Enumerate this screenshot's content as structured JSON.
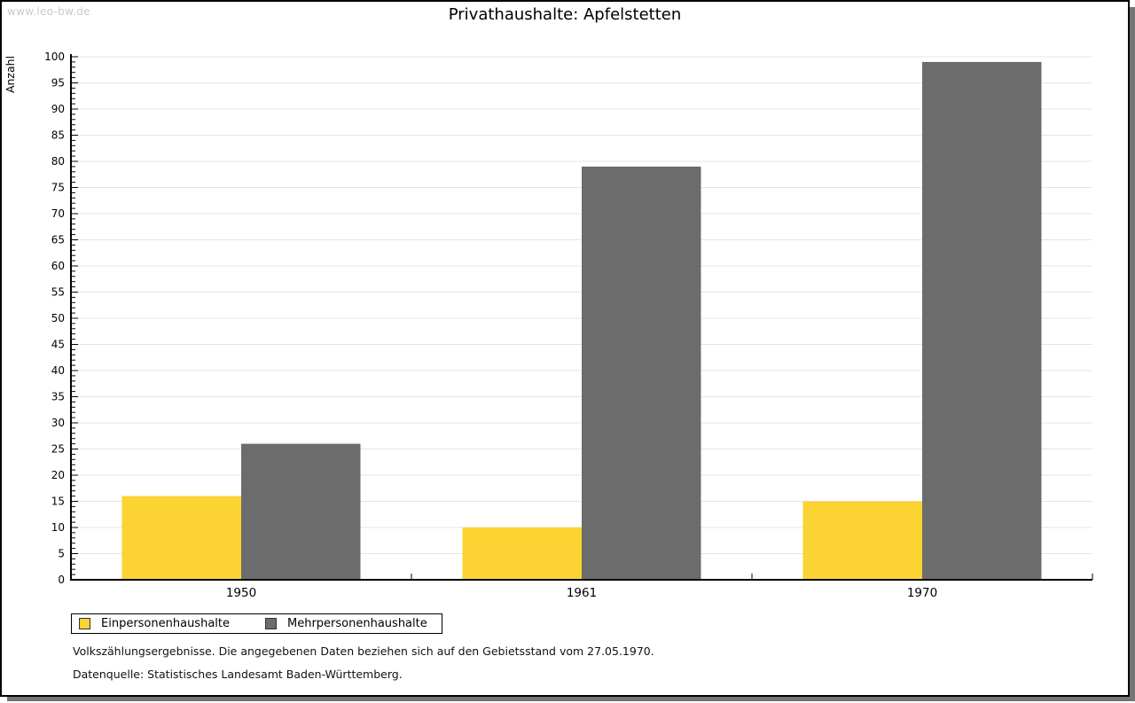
{
  "page": {
    "watermark": "www.leo-bw.de"
  },
  "chart_data": {
    "type": "bar",
    "title": "Privathaushalte: Apfelstetten",
    "categories": [
      "1950",
      "1961",
      "1970"
    ],
    "series": [
      {
        "name": "Einpersonenhaushalte",
        "color": "#FBD332",
        "values": [
          16,
          10,
          15
        ]
      },
      {
        "name": "Mehrpersonenhaushalte",
        "color": "#6C6C6C",
        "values": [
          26,
          79,
          99
        ]
      }
    ],
    "xlabel": "",
    "ylabel": "Anzahl",
    "ylim": [
      0,
      100
    ],
    "ytick_step": 5,
    "minor_tick_step": 1,
    "grid": true,
    "gridline_color": "#e4e4e4",
    "legend_position": "bottom-left"
  },
  "footer": {
    "line1": "Volkszählungsergebnisse. Die angegebenen Daten beziehen sich auf den Gebietsstand vom 27.05.1970.",
    "line2": "Datenquelle: Statistisches Landesamt Baden-Württemberg."
  }
}
